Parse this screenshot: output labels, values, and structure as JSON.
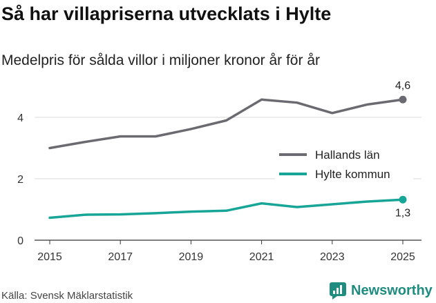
{
  "title": "Så har villapriserna utvecklats i Hylte",
  "subtitle": "Medelpris för sålda villor i miljoner kronor år för år",
  "source": "Källa: Svensk Mäklarstatistik",
  "brand": {
    "name": "Newsworthy",
    "icon": "newsworthy-logo-icon",
    "color": "#1e8c7e"
  },
  "chart_data": {
    "type": "line",
    "x": [
      2015,
      2016,
      2017,
      2018,
      2019,
      2020,
      2021,
      2022,
      2023,
      2024,
      2025
    ],
    "xticks": [
      "2015",
      "2017",
      "2019",
      "2021",
      "2023",
      "2025"
    ],
    "yticks": [
      "0",
      "2",
      "4"
    ],
    "ylim": [
      0,
      4.9
    ],
    "xlabel": "",
    "ylabel": "",
    "grid": true,
    "legend_position": "right",
    "series": [
      {
        "name": "Hallands län",
        "color": "#6b6a70",
        "values": [
          3.0,
          3.2,
          3.38,
          3.38,
          3.62,
          3.9,
          4.58,
          4.48,
          4.14,
          4.42,
          4.58
        ],
        "end_label": "4,6"
      },
      {
        "name": "Hylte kommun",
        "color": "#16a596",
        "values": [
          0.73,
          0.83,
          0.84,
          0.88,
          0.93,
          0.96,
          1.2,
          1.08,
          1.17,
          1.26,
          1.32
        ],
        "end_label": "1,3"
      }
    ]
  }
}
